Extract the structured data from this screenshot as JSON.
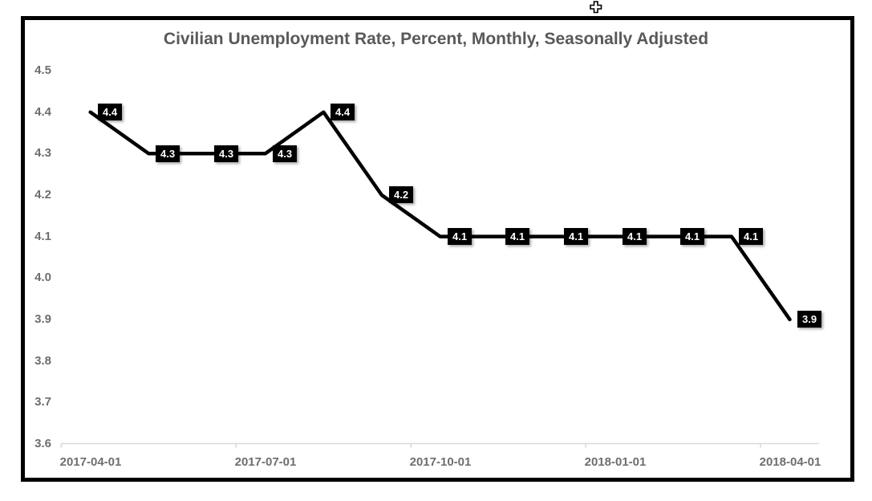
{
  "window": {
    "background_color": "#ffffff"
  },
  "cursor": {
    "type": "move-cursor",
    "fill": "#ffffff",
    "outline": "#000000"
  },
  "chart": {
    "title": "Civilian Unemployment Rate, Percent, Monthly, Seasonally Adjusted",
    "frame_border_color": "#000000",
    "title_color": "#595959",
    "axis_text_color": "#6e6e6e",
    "axis_line_color": "#d9d9d9",
    "line_color": "#000000",
    "data_label_bg": "#000000",
    "data_label_text_color": "#ffffff"
  },
  "chart_data": {
    "type": "line",
    "title": "Civilian Unemployment Rate, Percent, Monthly, Seasonally Adjusted",
    "x": [
      "2017-04-01",
      "2017-05-01",
      "2017-06-01",
      "2017-07-01",
      "2017-08-01",
      "2017-09-01",
      "2017-10-01",
      "2017-11-01",
      "2017-12-01",
      "2018-01-01",
      "2018-02-01",
      "2018-03-01",
      "2018-04-01"
    ],
    "values": [
      4.4,
      4.3,
      4.3,
      4.3,
      4.4,
      4.2,
      4.1,
      4.1,
      4.1,
      4.1,
      4.1,
      4.1,
      3.9
    ],
    "data_labels": [
      "4.4",
      "4.3",
      "4.3",
      "4.3",
      "4.4",
      "4.2",
      "4.1",
      "4.1",
      "4.1",
      "4.1",
      "4.1",
      "4.1",
      "3.9"
    ],
    "xtick_labels": [
      "2017-04-01",
      "2017-07-01",
      "2017-10-01",
      "2018-01-01",
      "2018-04-01"
    ],
    "xtick_indices": [
      0,
      3,
      6,
      9,
      12
    ],
    "ytick_labels": [
      "4.5",
      "4.4",
      "4.3",
      "4.2",
      "4.1",
      "4.0",
      "3.9",
      "3.8",
      "3.7",
      "3.6"
    ],
    "ylim": [
      3.6,
      4.5
    ],
    "xlabel": "",
    "ylabel": "",
    "grid": "off",
    "legend": "none",
    "label_style": "black-box-white-text"
  }
}
